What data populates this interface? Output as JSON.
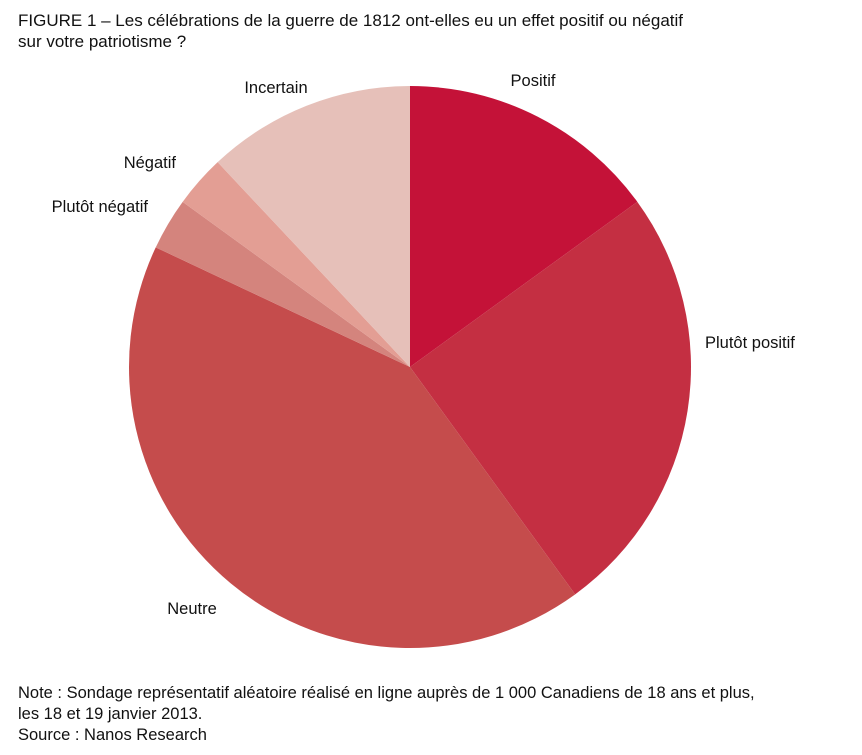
{
  "figure": {
    "title_line1": "FIGURE 1 – Les célébrations de la guerre de 1812 ont-elles eu un effet positif ou négatif",
    "title_line2": "sur votre patriotisme ?"
  },
  "chart_data": {
    "type": "pie",
    "title": "Les célébrations de la guerre de 1812 ont-elles eu un effet positif ou négatif sur votre patriotisme ?",
    "start": "12 o'clock, clockwise",
    "slices": [
      {
        "label": "Positif",
        "value": 15,
        "color": "#c41238"
      },
      {
        "label": "Plutôt positif",
        "value": 25,
        "color": "#c42f42"
      },
      {
        "label": "Neutre",
        "value": 42,
        "color": "#c54c4c"
      },
      {
        "label": "Plutôt négatif",
        "value": 3,
        "color": "#d4847d"
      },
      {
        "label": "Négatif",
        "value": 3,
        "color": "#e39e94"
      },
      {
        "label": "Incertain",
        "value": 12,
        "color": "#e6c0b9"
      }
    ]
  },
  "notes": {
    "note_line1": "Note : Sondage représentatif aléatoire réalisé en ligne auprès de 1 000 Canadiens de 18 ans et plus,",
    "note_line2": "les 18 et 19 janvier 2013.",
    "source": "Source : Nanos Research"
  }
}
